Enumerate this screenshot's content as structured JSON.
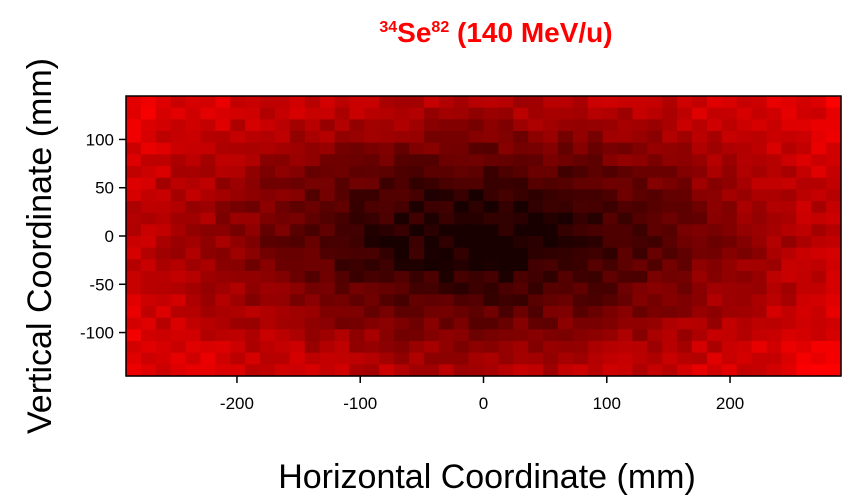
{
  "chart_data": {
    "type": "heatmap",
    "title": {
      "prefix_sup": "34",
      "element": "Se",
      "suffix_sup": "82",
      "energy": " (140 MeV/u)",
      "color": "#ff0000"
    },
    "xlabel": "Horizontal Coordinate (mm)",
    "ylabel": "Vertical Coordinate (mm)",
    "xlim": [
      -290,
      290
    ],
    "ylim": [
      -145,
      145
    ],
    "xticks": [
      -200,
      -100,
      0,
      100,
      200
    ],
    "yticks": [
      -100,
      -50,
      0,
      50,
      100
    ],
    "x_bins": 48,
    "y_bins": 24,
    "colormap": "black-to-red",
    "color_low": "#000000",
    "color_high": "#ff0000",
    "distribution": {
      "shape": "gaussian-centered",
      "center": [
        0,
        0
      ],
      "sigma_x_mm": 175,
      "sigma_y_mm": 95
    }
  }
}
